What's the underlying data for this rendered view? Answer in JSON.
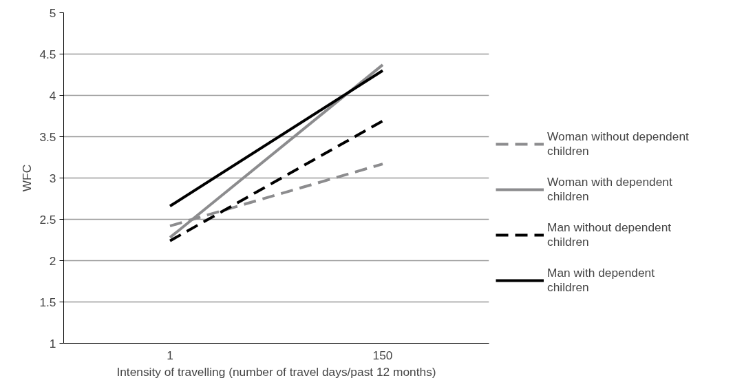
{
  "chart_data": {
    "type": "line",
    "xlabel": "Intensity of travelling (number of travel days/past 12 months)",
    "ylabel": "WFC",
    "categories": [
      "1",
      "150"
    ],
    "ylim": [
      1,
      5
    ],
    "yticks": [
      1,
      1.5,
      2,
      2.5,
      3,
      3.5,
      4,
      4.5,
      5
    ],
    "grid": "y",
    "legend": "right",
    "marker": "none",
    "series": [
      {
        "name": "Woman without dependent children",
        "color": "#8c8c8e",
        "line_style": "dashed",
        "values": [
          2.42,
          3.17
        ]
      },
      {
        "name": "Woman with dependent children",
        "color": "#8c8c8e",
        "line_style": "solid",
        "values": [
          2.28,
          4.37
        ]
      },
      {
        "name": "Man without dependent children",
        "color": "#000000",
        "line_style": "dashed",
        "values": [
          2.24,
          3.69
        ]
      },
      {
        "name": "Man with dependent children",
        "color": "#000000",
        "line_style": "solid",
        "values": [
          2.66,
          4.3
        ]
      }
    ]
  }
}
